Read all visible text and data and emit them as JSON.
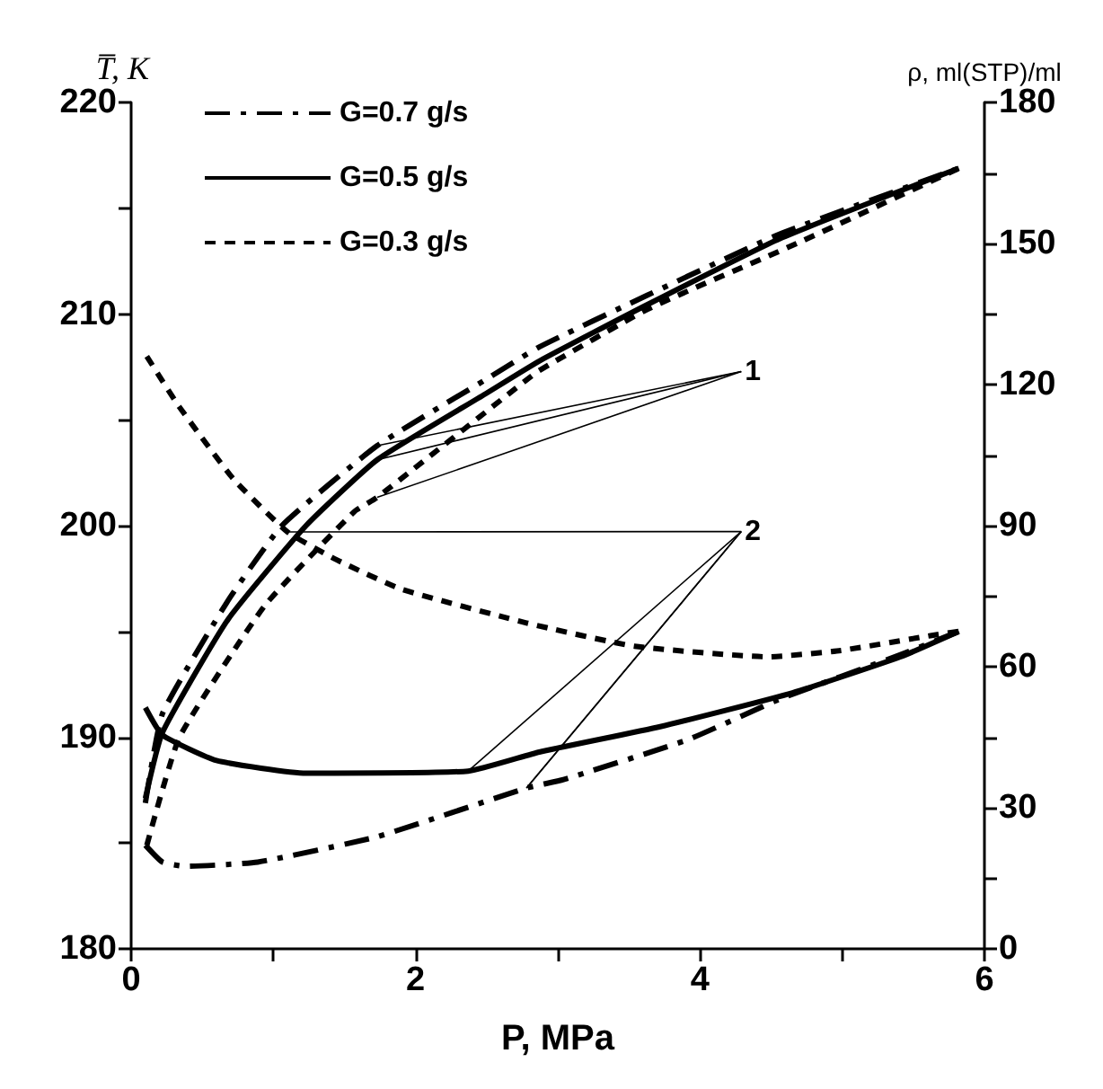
{
  "chart_data": {
    "type": "line",
    "xlabel": "P, MPa",
    "ylabel": "T̅, K",
    "y2label": "ρ, ml(STP)/ml",
    "xlim": [
      0,
      6
    ],
    "xticks": [
      0,
      {
        "value": 1,
        "label": null
      },
      2,
      {
        "value": 3,
        "label": null
      },
      4,
      {
        "value": 5,
        "label": null
      },
      6
    ],
    "ylim": [
      180,
      220
    ],
    "yticks": [
      180,
      {
        "value": 185,
        "label": null
      },
      190,
      {
        "value": 195,
        "label": null
      },
      200,
      {
        "value": 205,
        "label": null
      },
      210,
      {
        "value": 215,
        "label": null
      },
      220
    ],
    "y2lim": [
      0,
      180
    ],
    "y2ticks": [
      0,
      {
        "value": 15,
        "label": null
      },
      30,
      {
        "value": 45,
        "label": null
      },
      60,
      {
        "value": 75,
        "label": null
      },
      90,
      {
        "value": 105,
        "label": null
      },
      120,
      {
        "value": 135,
        "label": null
      },
      150,
      {
        "value": 165,
        "label": null
      },
      180
    ],
    "grid": false,
    "legend": "top left",
    "marker": "none",
    "annotations": [
      "1",
      {
        "text": "2",
        "x": 2.78,
        "y": 187.6
      }
    ],
    "series": [
      {
        "name": "G=0.7 g/s",
        "color": "#000000",
        "line_style": "dashdot",
        "axis": "y2",
        "x": [
          0.1,
          0.22,
          0.68,
          1.06,
          1.73,
          2.49,
          2.87,
          3.63,
          4.56,
          5.82
        ],
        "values": [
          31,
          50,
          74,
          90,
          107,
          121,
          128,
          139,
          152,
          166
        ]
      },
      {
        "name": "G=0.5 g/s",
        "color": "#000000",
        "line_style": "solid",
        "axis": "y2",
        "x": [
          0.1,
          0.22,
          0.68,
          1.23,
          1.73,
          2.49,
          2.87,
          3.63,
          4.56,
          5.82
        ],
        "values": [
          32,
          46,
          70,
          90,
          104,
          118,
          125,
          137,
          151,
          166
        ]
      },
      {
        "name": "G=0.3 g/s",
        "color": "#000000",
        "line_style": "dashed",
        "axis": "y2",
        "x": [
          0.11,
          0.34,
          0.94,
          1.57,
          1.73,
          2.78,
          2.87,
          3.63,
          4.68,
          5.82
        ],
        "values": [
          22,
          45,
          73,
          93,
          96,
          121,
          123,
          136,
          150,
          166
        ]
      },
      {
        "color": "#000000",
        "line_style": "dashdot",
        "axis": "y",
        "x": [
          0.1,
          0.22,
          0.38,
          0.89,
          1.73,
          2.78,
          3.04,
          3.92,
          4.56,
          5.41,
          5.82
        ],
        "values": [
          184.9,
          184.1,
          183.9,
          184.1,
          185.3,
          187.6,
          188.0,
          189.9,
          191.8,
          193.9,
          195.0
        ]
      },
      {
        "color": "#000000",
        "line_style": "solid",
        "axis": "y",
        "x": [
          0.1,
          0.22,
          0.6,
          1.23,
          2.37,
          2.87,
          3.72,
          4.65,
          5.41,
          5.82
        ],
        "values": [
          191.4,
          190.1,
          188.9,
          188.3,
          188.4,
          189.3,
          190.5,
          192.1,
          193.8,
          195.0
        ]
      },
      {
        "color": "#000000",
        "line_style": "dashed",
        "axis": "y",
        "x": [
          0.11,
          0.34,
          0.72,
          1.1,
          1.44,
          1.9,
          2.78,
          3.54,
          4.48,
          4.99,
          5.62,
          5.82
        ],
        "values": [
          208.0,
          205.6,
          202.2,
          199.7,
          198.4,
          197.0,
          195.4,
          194.3,
          193.8,
          194.1,
          194.8,
          195.0
        ]
      }
    ]
  }
}
